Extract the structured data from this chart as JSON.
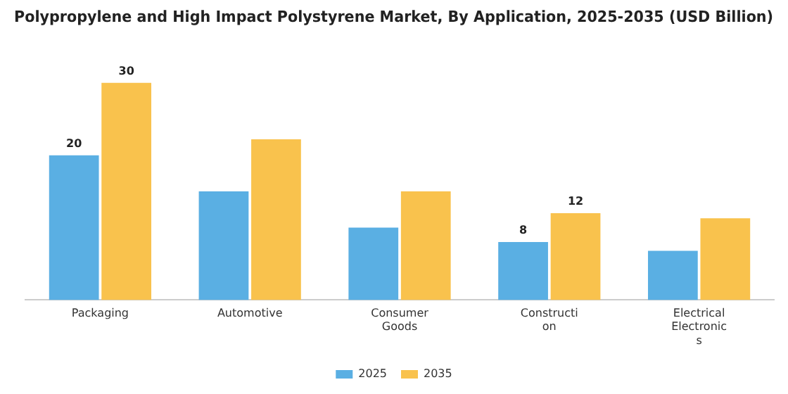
{
  "chart_data": {
    "type": "bar",
    "title": "Polypropylene and High Impact Polystyrene Market, By Application, 2025-2035 (USD Billion)",
    "categories": [
      "Packaging",
      "Automotive",
      "Consumer Goods",
      "Construction",
      "Electrical Electronics"
    ],
    "series": [
      {
        "name": "2025",
        "color": "#5aafe3",
        "values": [
          20,
          15,
          10,
          8,
          6.8
        ],
        "value_labels": [
          "20",
          null,
          null,
          "8",
          null
        ]
      },
      {
        "name": "2035",
        "color": "#f9c24d",
        "values": [
          30,
          22.2,
          15,
          12,
          11.3
        ],
        "value_labels": [
          "30",
          null,
          null,
          "12",
          null
        ]
      }
    ],
    "legend": "bottom",
    "grid": false
  }
}
